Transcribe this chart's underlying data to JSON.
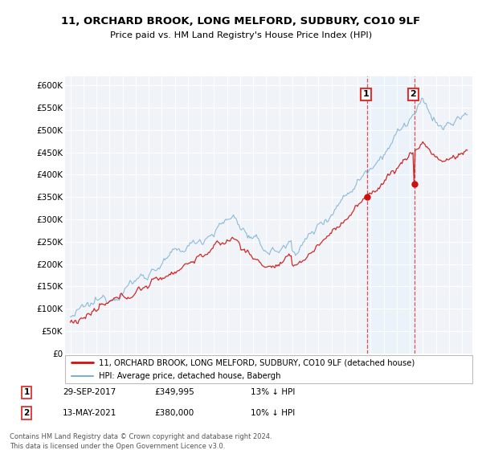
{
  "title": "11, ORCHARD BROOK, LONG MELFORD, SUDBURY, CO10 9LF",
  "subtitle": "Price paid vs. HM Land Registry's House Price Index (HPI)",
  "ylabel_ticks": [
    "£0",
    "£50K",
    "£100K",
    "£150K",
    "£200K",
    "£250K",
    "£300K",
    "£350K",
    "£400K",
    "£450K",
    "£500K",
    "£550K",
    "£600K"
  ],
  "ylim": [
    0,
    620000
  ],
  "ytick_vals": [
    0,
    50000,
    100000,
    150000,
    200000,
    250000,
    300000,
    350000,
    400000,
    450000,
    500000,
    550000,
    600000
  ],
  "purchase1_date": 2017.75,
  "purchase1_price": 349995,
  "purchase2_date": 2021.37,
  "purchase2_price": 380000,
  "hpi_color": "#7bafd4",
  "property_color": "#cc1111",
  "vline_color": "#dd3333",
  "shade_color": "#ddeeff",
  "background_color": "#f0f4f8",
  "footer_text": "Contains HM Land Registry data © Crown copyright and database right 2024.\nThis data is licensed under the Open Government Licence v3.0.",
  "legend1": "11, ORCHARD BROOK, LONG MELFORD, SUDBURY, CO10 9LF (detached house)",
  "legend2": "HPI: Average price, detached house, Babergh",
  "table_row1": [
    "1",
    "29-SEP-2017",
    "£349,995",
    "13% ↓ HPI"
  ],
  "table_row2": [
    "2",
    "13-MAY-2021",
    "£380,000",
    "10% ↓ HPI"
  ]
}
